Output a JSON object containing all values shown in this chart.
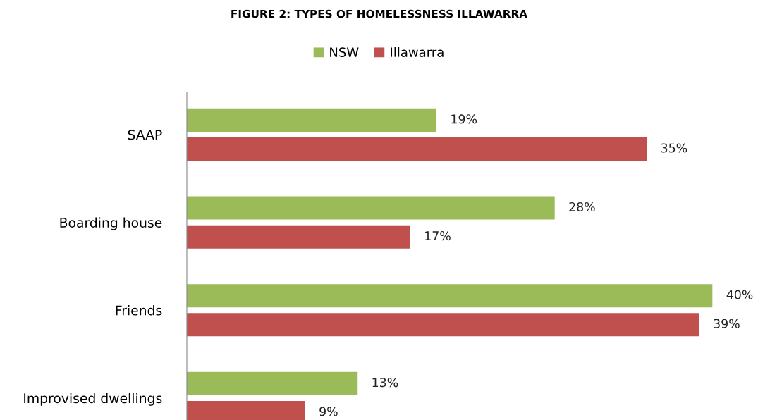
{
  "chart_data": {
    "type": "bar",
    "orientation": "horizontal",
    "title": "FIGURE 2: TYPES OF HOMELESSNESS ILLAWARRA",
    "categories": [
      "SAAP",
      "Boarding house",
      "Friends",
      "Improvised dwellings"
    ],
    "series": [
      {
        "name": "NSW",
        "color": "#9bbb59",
        "values": [
          19,
          28,
          40,
          13
        ],
        "value_labels": [
          "19%",
          "28%",
          "40%",
          "13%"
        ]
      },
      {
        "name": "Illawarra",
        "color": "#c0504d",
        "values": [
          35,
          17,
          39,
          9
        ],
        "value_labels": [
          "35%",
          "17%",
          "39%",
          "9%"
        ]
      }
    ],
    "legend": "top",
    "grid": false
  }
}
